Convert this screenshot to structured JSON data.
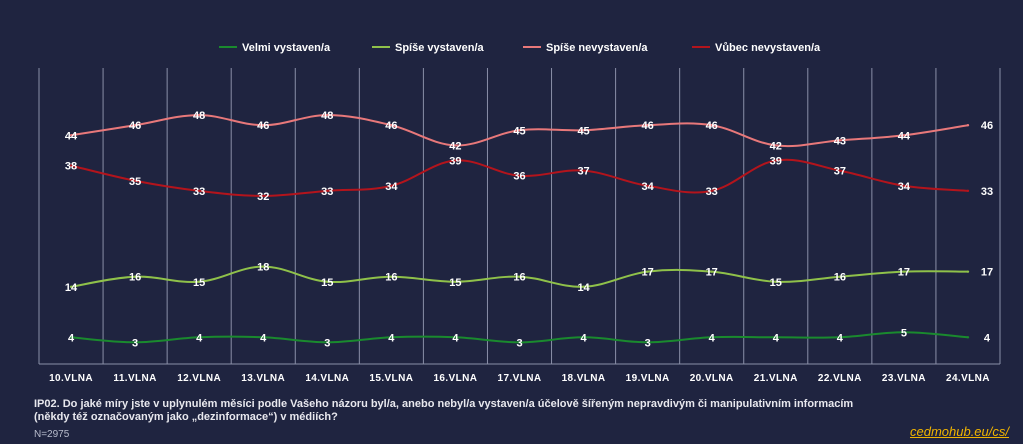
{
  "chart_data": {
    "type": "line",
    "categories": [
      "10.VLNA",
      "11.VLNA",
      "12.VLNA",
      "13.VLNA",
      "14.VLNA",
      "15.VLNA",
      "16.VLNA",
      "17.VLNA",
      "18.VLNA",
      "19.VLNA",
      "20.VLNA",
      "21.VLNA",
      "22.VLNA",
      "23.VLNA",
      "24.VLNA"
    ],
    "series": [
      {
        "name": "Velmi vystaven/a",
        "color": "#1a8a2e",
        "values": [
          4,
          3,
          4,
          4,
          3,
          4,
          4,
          3,
          4,
          3,
          4,
          4,
          4,
          5,
          4
        ]
      },
      {
        "name": "Spíše vystaven/a",
        "color": "#8fc14a",
        "values": [
          14,
          16,
          15,
          18,
          15,
          16,
          15,
          16,
          14,
          17,
          17,
          15,
          16,
          17,
          17
        ]
      },
      {
        "name": "Spíše nevystaven/a",
        "color": "#e8787a",
        "values": [
          44,
          46,
          48,
          46,
          48,
          46,
          42,
          45,
          45,
          46,
          46,
          42,
          43,
          44,
          46
        ]
      },
      {
        "name": "Vůbec nevystaven/a",
        "color": "#b3141c",
        "values": [
          38,
          35,
          33,
          32,
          33,
          34,
          39,
          36,
          37,
          34,
          33,
          39,
          37,
          34,
          33
        ]
      }
    ],
    "ylim": [
      0,
      60
    ],
    "title": "",
    "xlabel": "",
    "ylabel": "",
    "legend": "top",
    "grid": "vertical"
  },
  "footer": {
    "question_line1": "IP02. Do jaké míry jste v uplynulém měsíci podle Vašeho názoru byl/a, anebo nebyl/a vystaven/a účelově šířeným nepravdivým či manipulativním informacím",
    "question_line2": "(někdy též označovaným jako „dezinformace“) v médiích?",
    "n": "N=2975",
    "source": "cedmohub.eu/cs/"
  }
}
